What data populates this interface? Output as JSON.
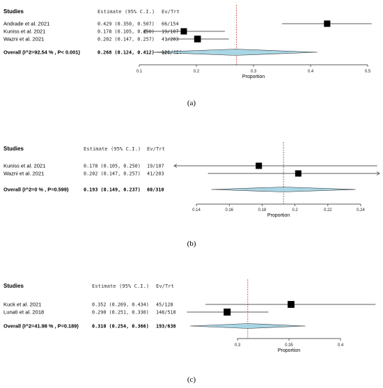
{
  "chart_data": [
    {
      "type": "forest",
      "caption": "(a)",
      "columns": [
        "Studies",
        "Estimate (95% C.I.)",
        "Ev/Trt"
      ],
      "xlabel": "Proportion",
      "ticks": [
        "0.1",
        "0.2",
        "0.3",
        "0.4",
        "0.5"
      ],
      "tick_values": [
        0.1,
        0.2,
        0.3,
        0.4,
        0.5
      ],
      "xlim": [
        0.1,
        0.5
      ],
      "reference_line": 0.27,
      "studies": [
        {
          "name": "Andrade et al. 2021",
          "estimate": 0.429,
          "lower": 0.35,
          "upper": 0.507,
          "estimate_text": "0.429 (0.350, 0.507)",
          "events": "66/154",
          "weight": 0.31
        },
        {
          "name": "Kuniss et al. 2021",
          "estimate": 0.178,
          "lower": 0.105,
          "upper": 0.25,
          "estimate_text": "0.178 (0.105, 0.250)",
          "events": "19/107",
          "weight": 0.3
        },
        {
          "name": "Wazni et al. 2021",
          "estimate": 0.202,
          "lower": 0.147,
          "upper": 0.257,
          "estimate_text": "0.202 (0.147, 0.257)",
          "events": "41/203",
          "weight": 0.36
        }
      ],
      "overall": {
        "label": "Overall (I^2=92.54 % , P< 0.001)",
        "estimate": 0.268,
        "lower": 0.124,
        "upper": 0.412,
        "estimate_text": "0.268 (0.124, 0.412)",
        "events": "126/464"
      }
    },
    {
      "type": "forest",
      "caption": "(b)",
      "columns": [
        "Studies",
        "Estimate (95% C.I.)",
        "Ev/Trt"
      ],
      "xlabel": "Proportion",
      "ticks": [
        "0.14",
        "0.16",
        "0.18",
        "0.2",
        "0.22",
        "0.24"
      ],
      "tick_values": [
        0.14,
        0.16,
        0.18,
        0.2,
        0.22,
        0.24
      ],
      "xlim": [
        0.14,
        0.24
      ],
      "reference_line": 0.193,
      "studies": [
        {
          "name": "Kuniss et al. 2021",
          "estimate": 0.178,
          "lower": 0.105,
          "upper": 0.25,
          "estimate_text": "0.178 (0.105, 0.250)",
          "events": "19/107",
          "weight": 0.42
        },
        {
          "name": "Wazni et al. 2021",
          "estimate": 0.202,
          "lower": 0.147,
          "upper": 0.257,
          "estimate_text": "0.202 (0.147, 0.257)",
          "events": "41/203",
          "weight": 0.58
        }
      ],
      "overall": {
        "label": "Overall (I^2=0 % , P=0.599)",
        "estimate": 0.193,
        "lower": 0.149,
        "upper": 0.237,
        "estimate_text": "0.193 (0.149, 0.237)",
        "events": "60/310"
      }
    },
    {
      "type": "forest",
      "caption": "(c)",
      "columns": [
        "Studies",
        "Estimate (95% C.I.)",
        "Ev/Trt"
      ],
      "xlabel": "Proportion",
      "ticks": [
        "0.3",
        "0.35",
        "0.4"
      ],
      "tick_values": [
        0.3,
        0.35,
        0.4
      ],
      "xlim": [
        0.3,
        0.4
      ],
      "reference_line": 0.31,
      "studies": [
        {
          "name": "Kuck et al. 2021",
          "estimate": 0.352,
          "lower": 0.269,
          "upper": 0.434,
          "estimate_text": "0.352 (0.269, 0.434)",
          "events": "45/128",
          "weight": 0.38
        },
        {
          "name": "Lunati et al. 2018",
          "estimate": 0.29,
          "lower": 0.251,
          "upper": 0.33,
          "estimate_text": "0.290 (0.251, 0.330)",
          "events": "148/510",
          "weight": 0.62
        }
      ],
      "overall": {
        "label": "Overall (I^2=41.98 % , P=0.189)",
        "estimate": 0.31,
        "lower": 0.254,
        "upper": 0.366,
        "estimate_text": "0.310 (0.254, 0.366)",
        "events": "193/638"
      }
    }
  ]
}
